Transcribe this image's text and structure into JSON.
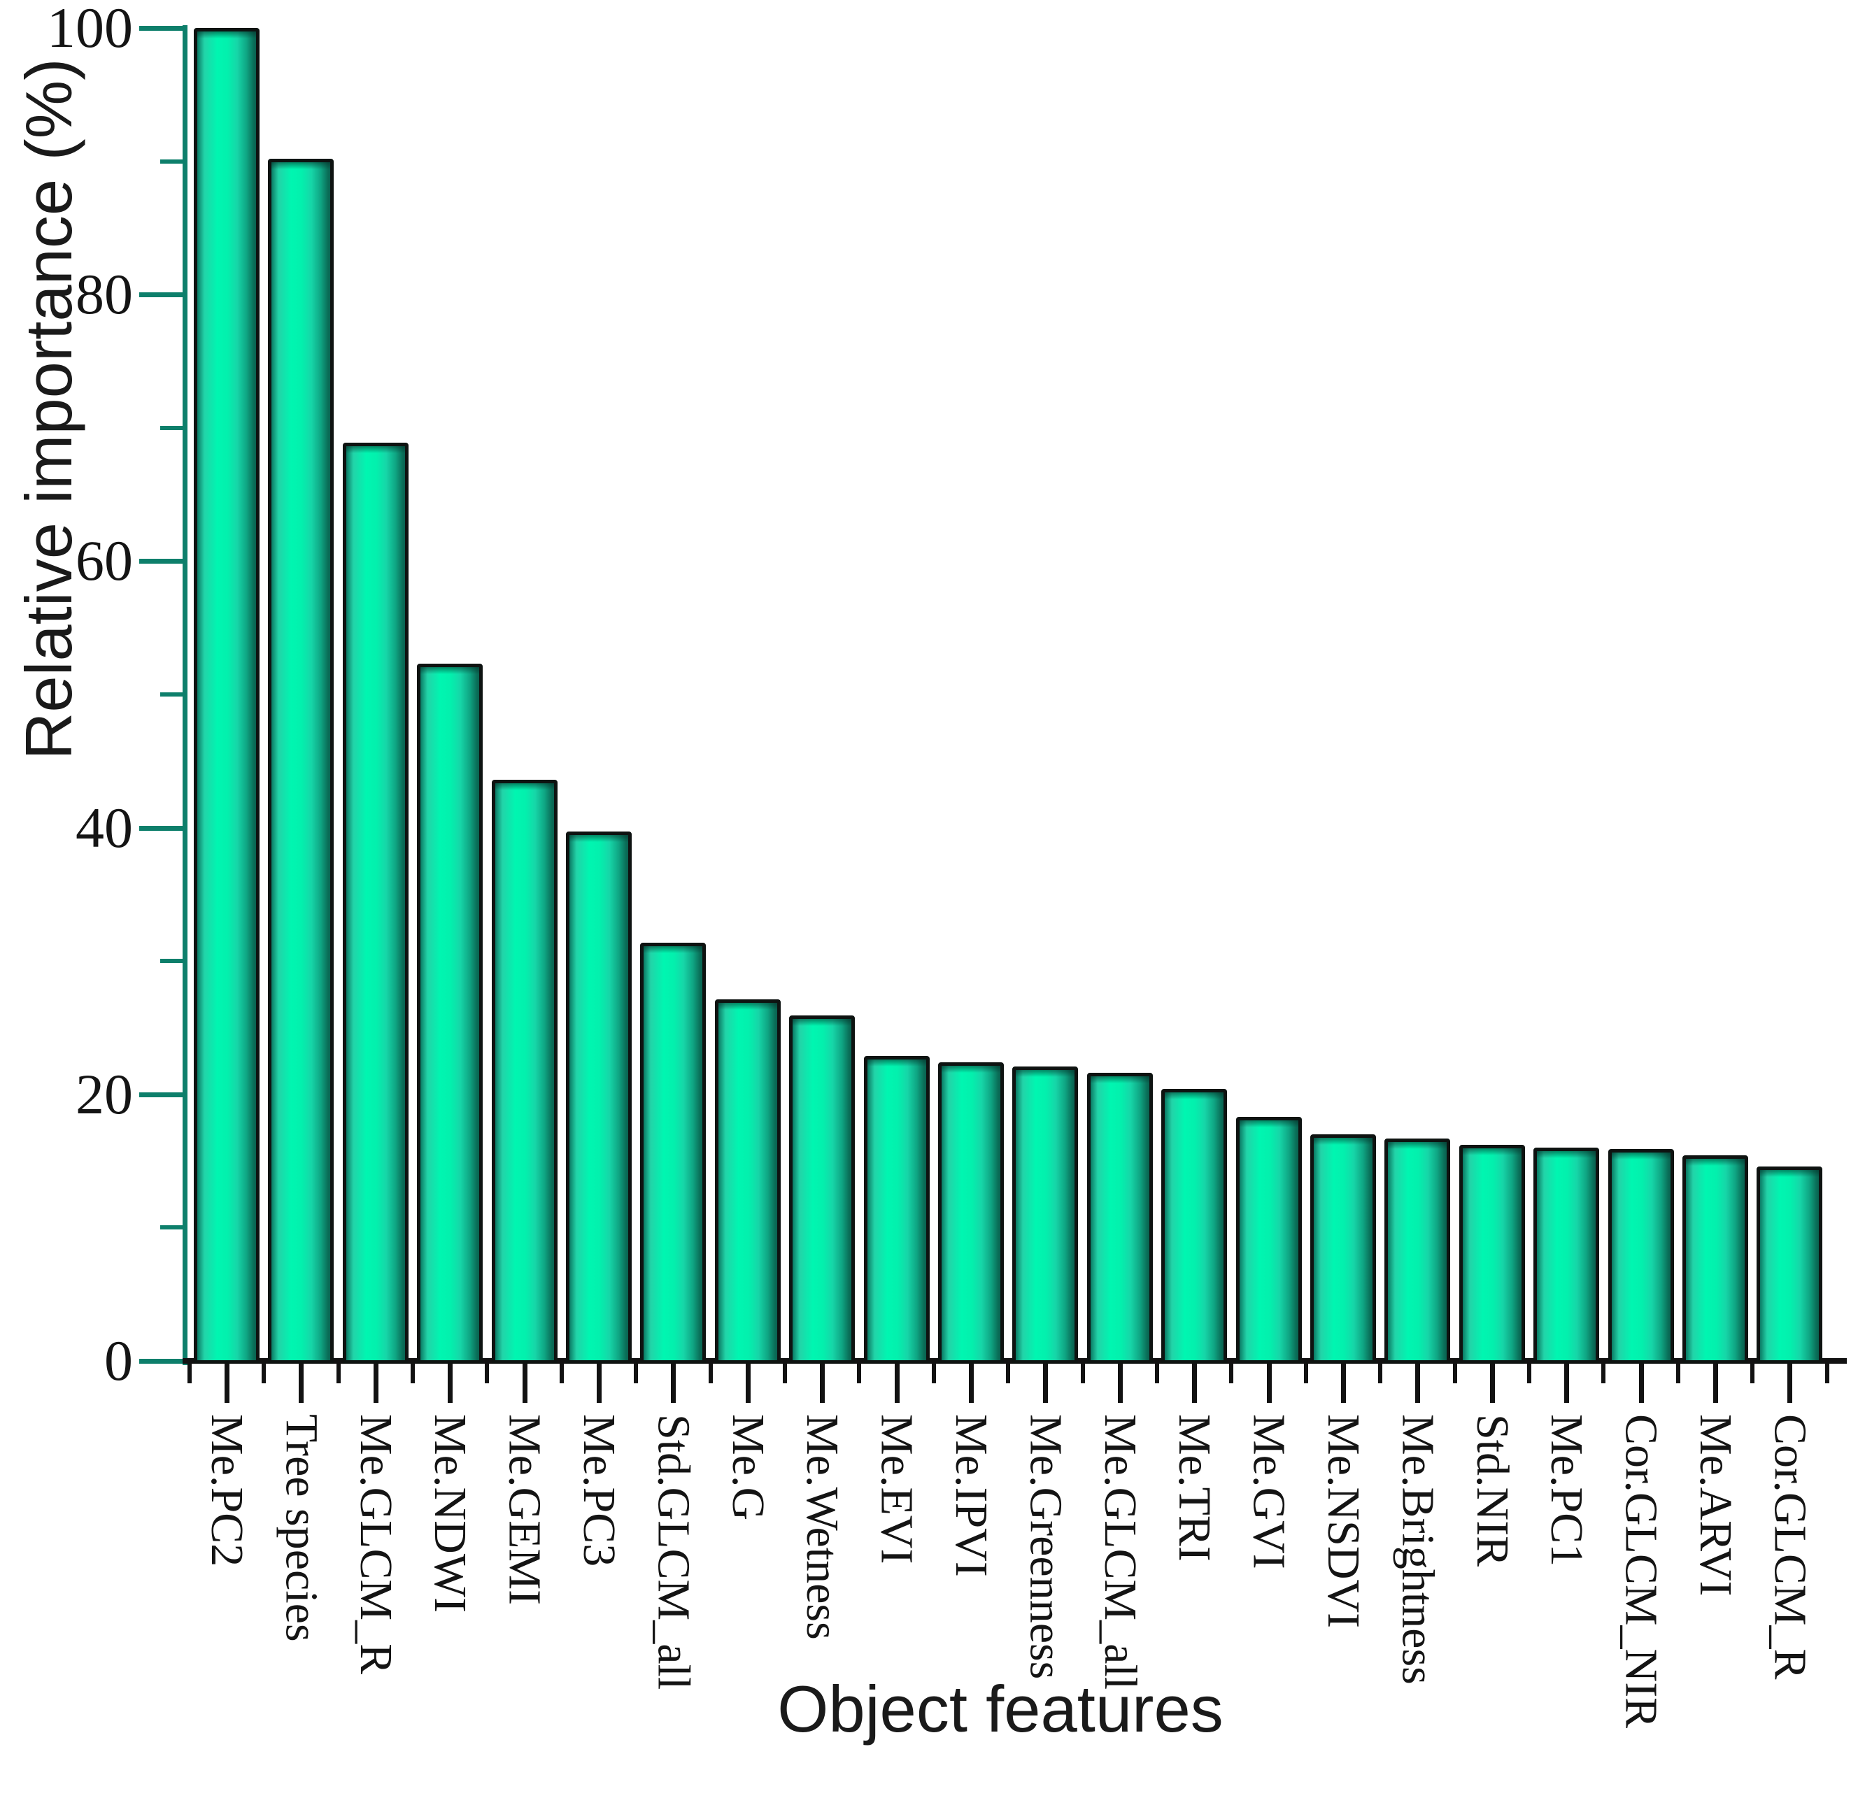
{
  "chart_data": {
    "type": "bar",
    "title": "",
    "xlabel": "Object features",
    "ylabel": "Relative importance (%)",
    "categories": [
      "Me.PC2",
      "Tree species",
      "Me.GLCM_R",
      "Me.NDWI",
      "Me.GEMI",
      "Me.PC3",
      "Std.GLCM_all",
      "Me.G",
      "Me.Wetness",
      "Me.EVI",
      "Me.IPVI",
      "Me.Greenness",
      "Me.GLCM_all",
      "Me.TRI",
      "Me.GVI",
      "Me.NSDVI",
      "Me.Brightness",
      "Std.NIR",
      "Me.PC1",
      "Cor.GLCM_NIR",
      "Me.ARVI",
      "Cor.GLCM_R"
    ],
    "values": [
      100,
      90.2,
      68.9,
      52.3,
      43.6,
      39.7,
      31.4,
      27.1,
      25.9,
      22.9,
      22.4,
      22.1,
      21.6,
      20.4,
      18.3,
      17.0,
      16.7,
      16.2,
      16.0,
      15.9,
      15.4,
      14.6
    ],
    "ylim": [
      0,
      100
    ],
    "yticks_major": [
      0,
      20,
      40,
      60,
      80,
      100
    ],
    "yticks_minor": [
      10,
      30,
      50,
      70,
      90
    ],
    "grid": false,
    "legend": false,
    "bar_color_center": "#00f6b1",
    "bar_color_edge": "#0a6e58",
    "bar_outline_color": "#0e1311",
    "y_axis_color": "#0d7f6b",
    "x_axis_color": "#121212",
    "text_color": "#141414"
  }
}
